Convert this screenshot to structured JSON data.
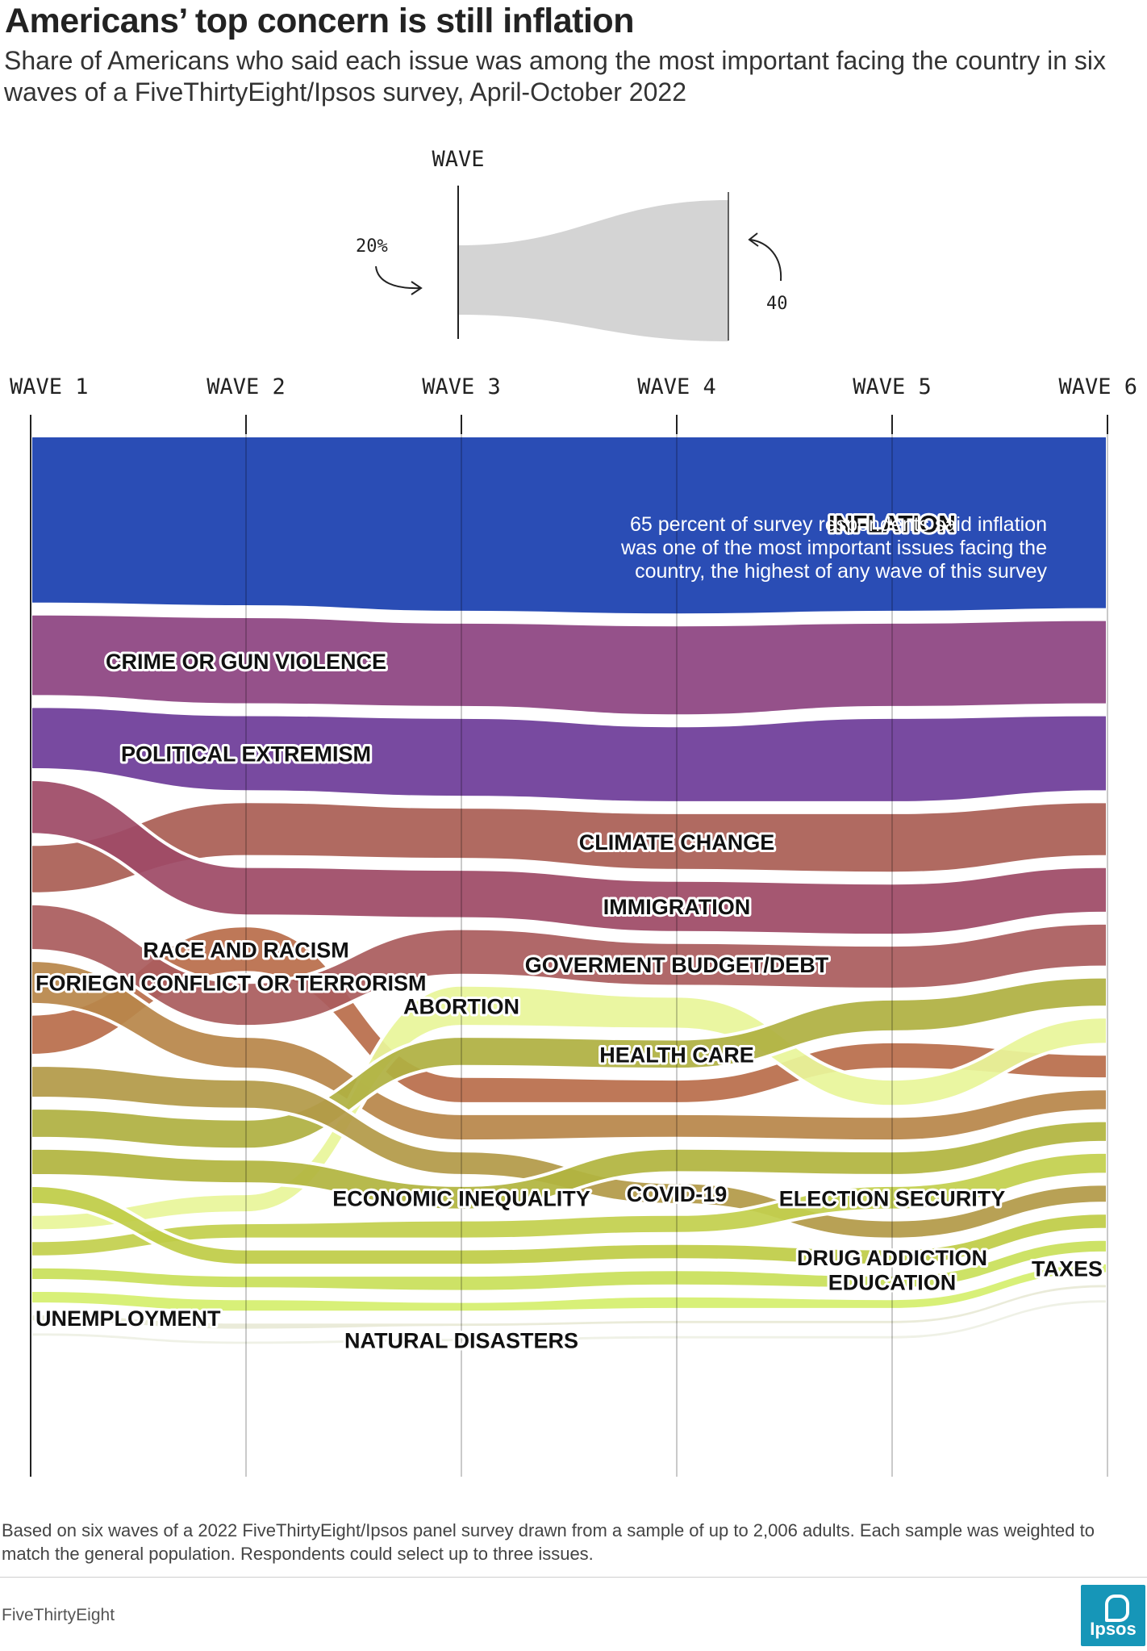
{
  "header": {
    "title": "Americans’ top concern is still inflation",
    "subtitle": "Share of Americans who said each issue was among the most important facing the country in six waves of a FiveThirtyEight/Ipsos survey, April-October 2022"
  },
  "legend": {
    "heading": "WAVE",
    "start_label": "20%",
    "end_label": "40"
  },
  "chart_data": {
    "type": "area",
    "x": [
      "WAVE 1",
      "WAVE 2",
      "WAVE 3",
      "WAVE 4",
      "WAVE 5",
      "WAVE 6"
    ],
    "series": [
      {
        "name": "INFLATION",
        "values": [
          61,
          62,
          64,
          65,
          64,
          63
        ],
        "color": "#1a3faf"
      },
      {
        "name": "CRIME OR GUN VIOLENCE",
        "values": [
          30,
          32,
          31,
          33,
          31,
          31
        ],
        "color": "#8d4481"
      },
      {
        "name": "POLITICAL EXTREMISM",
        "values": [
          23,
          28,
          29,
          28,
          31,
          28
        ],
        "color": "#6e3c99"
      },
      {
        "name": "CLIMATE CHANGE",
        "values": [
          18,
          20,
          19,
          21,
          22,
          20
        ],
        "color": "#aa5f55"
      },
      {
        "name": "IMMIGRATION",
        "values": [
          20,
          18,
          18,
          19,
          19,
          17
        ],
        "color": "#9e4a66"
      },
      {
        "name": "GOVERMENT BUDGET/DEBT",
        "values": [
          17,
          16,
          17,
          16,
          16,
          16
        ],
        "color": "#aa5c5e"
      },
      {
        "name": "RACE AND RACISM",
        "values": [
          15,
          17,
          10,
          9,
          10,
          9
        ],
        "color": "#b96e4b"
      },
      {
        "name": "ABORTION",
        "values": [
          6,
          7,
          15,
          12,
          10,
          10
        ],
        "color": "#e8f59a"
      },
      {
        "name": "FORIEGN CONFLICT OR TERRORISM",
        "values": [
          16,
          12,
          10,
          9,
          9,
          8
        ],
        "color": "#b8874a"
      },
      {
        "name": "COVID-19",
        "values": [
          12,
          11,
          9,
          8,
          7,
          7
        ],
        "color": "#b39a48"
      },
      {
        "name": "HEALTH CARE",
        "values": [
          11,
          11,
          11,
          11,
          12,
          11
        ],
        "color": "#afb042"
      },
      {
        "name": "ECONOMIC INEQUALITY",
        "values": [
          10,
          9,
          9,
          9,
          9,
          8
        ],
        "color": "#b2b540"
      },
      {
        "name": "ELECTION SECURITY",
        "values": [
          6,
          6,
          7,
          7,
          9,
          8
        ],
        "color": "#c3d04d"
      },
      {
        "name": "DRUG ADDICTION",
        "values": [
          7,
          6,
          6,
          6,
          6,
          6
        ],
        "color": "#bfcc47"
      },
      {
        "name": "EDUCATION",
        "values": [
          5,
          5,
          6,
          6,
          5,
          5
        ],
        "color": "#c9e05a"
      },
      {
        "name": "TAXES",
        "values": [
          5,
          5,
          4,
          5,
          4,
          4
        ],
        "color": "#d5ef6e"
      },
      {
        "name": "UNEMPLOYMENT",
        "values": [
          3,
          3,
          2,
          2,
          2,
          2
        ],
        "color": "#e8ead6"
      },
      {
        "name": "NATURAL DISASTERS",
        "values": [
          2,
          2,
          2,
          2,
          2,
          2
        ],
        "color": "#eef0e4"
      }
    ],
    "annotation": {
      "target": "INFLATION",
      "text": "65 percent of survey respondents said inflation was one of the most important issues facing the country, the highest of any wave of this survey"
    }
  },
  "footer": {
    "note": "Based on six waves of a 2022 FiveThirtyEight/Ipsos panel survey drawn from a sample of up to 2,006 adults. Each sample was weighted to match the general population. Respondents could select up to three issues.",
    "source": "FiveThirtyEight",
    "logo_text": "Ipsos"
  }
}
